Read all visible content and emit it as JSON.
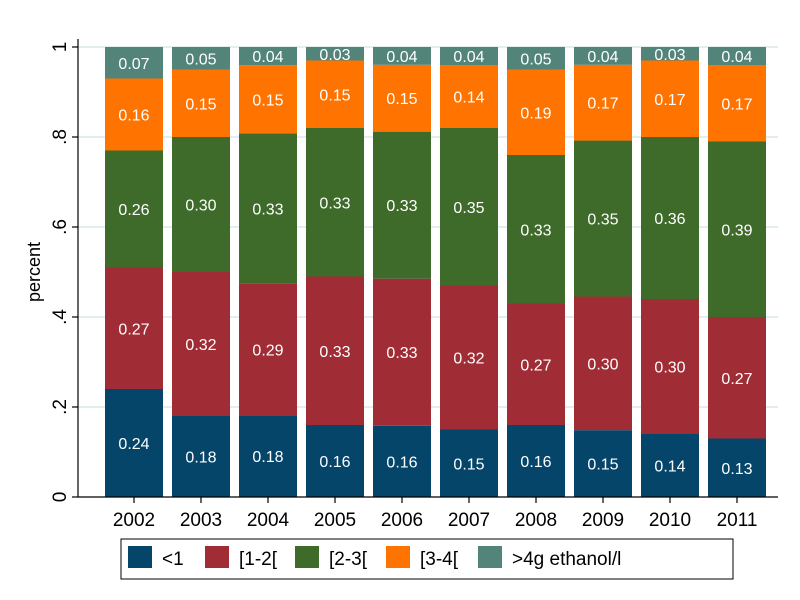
{
  "chart_data": {
    "type": "bar",
    "stacked": true,
    "title": "",
    "xlabel": "",
    "ylabel": "percent",
    "ylim": [
      0,
      1
    ],
    "yticks": [
      0,
      0.2,
      0.4,
      0.6,
      0.8,
      1
    ],
    "ytick_labels": [
      "0",
      ".2",
      ".4",
      ".6",
      ".8",
      "1"
    ],
    "grid": true,
    "legend_position": "bottom",
    "categories": [
      "2002",
      "2003",
      "2004",
      "2005",
      "2006",
      "2007",
      "2008",
      "2009",
      "2010",
      "2011"
    ],
    "series": [
      {
        "name": "<1",
        "color": "#05456a",
        "values": [
          0.24,
          0.18,
          0.18,
          0.16,
          0.16,
          0.15,
          0.16,
          0.15,
          0.14,
          0.13
        ]
      },
      {
        "name": "[1-2[",
        "color": "#a02d35",
        "values": [
          0.27,
          0.32,
          0.29,
          0.33,
          0.33,
          0.32,
          0.27,
          0.3,
          0.3,
          0.27
        ]
      },
      {
        "name": "[2-3[",
        "color": "#3e6b2a",
        "values": [
          0.26,
          0.3,
          0.33,
          0.33,
          0.33,
          0.35,
          0.33,
          0.35,
          0.36,
          0.39
        ]
      },
      {
        "name": "[3-4[",
        "color": "#ff7300",
        "values": [
          0.16,
          0.15,
          0.15,
          0.15,
          0.15,
          0.14,
          0.19,
          0.17,
          0.17,
          0.17
        ]
      },
      {
        "name": ">4g ethanol/l",
        "color": "#53847a",
        "values": [
          0.07,
          0.05,
          0.04,
          0.03,
          0.04,
          0.04,
          0.05,
          0.04,
          0.03,
          0.04
        ]
      }
    ],
    "value_labels": [
      [
        "0.24",
        "0.18",
        "0.18",
        "0.16",
        "0.16",
        "0.15",
        "0.16",
        "0.15",
        "0.14",
        "0.13"
      ],
      [
        "0.27",
        "0.32",
        "0.29",
        "0.33",
        "0.33",
        "0.32",
        "0.27",
        "0.30",
        "0.30",
        "0.27"
      ],
      [
        "0.26",
        "0.30",
        "0.33",
        "0.33",
        "0.33",
        "0.35",
        "0.33",
        "0.35",
        "0.36",
        "0.39"
      ],
      [
        "0.16",
        "0.15",
        "0.15",
        "0.15",
        "0.15",
        "0.14",
        "0.19",
        "0.17",
        "0.17",
        "0.17"
      ],
      [
        "0.07",
        "0.05",
        "0.04",
        "0.03",
        "0.04",
        "0.04",
        "0.05",
        "0.04",
        "0.03",
        "0.04"
      ]
    ],
    "gridline_color": "#e3eeee"
  }
}
